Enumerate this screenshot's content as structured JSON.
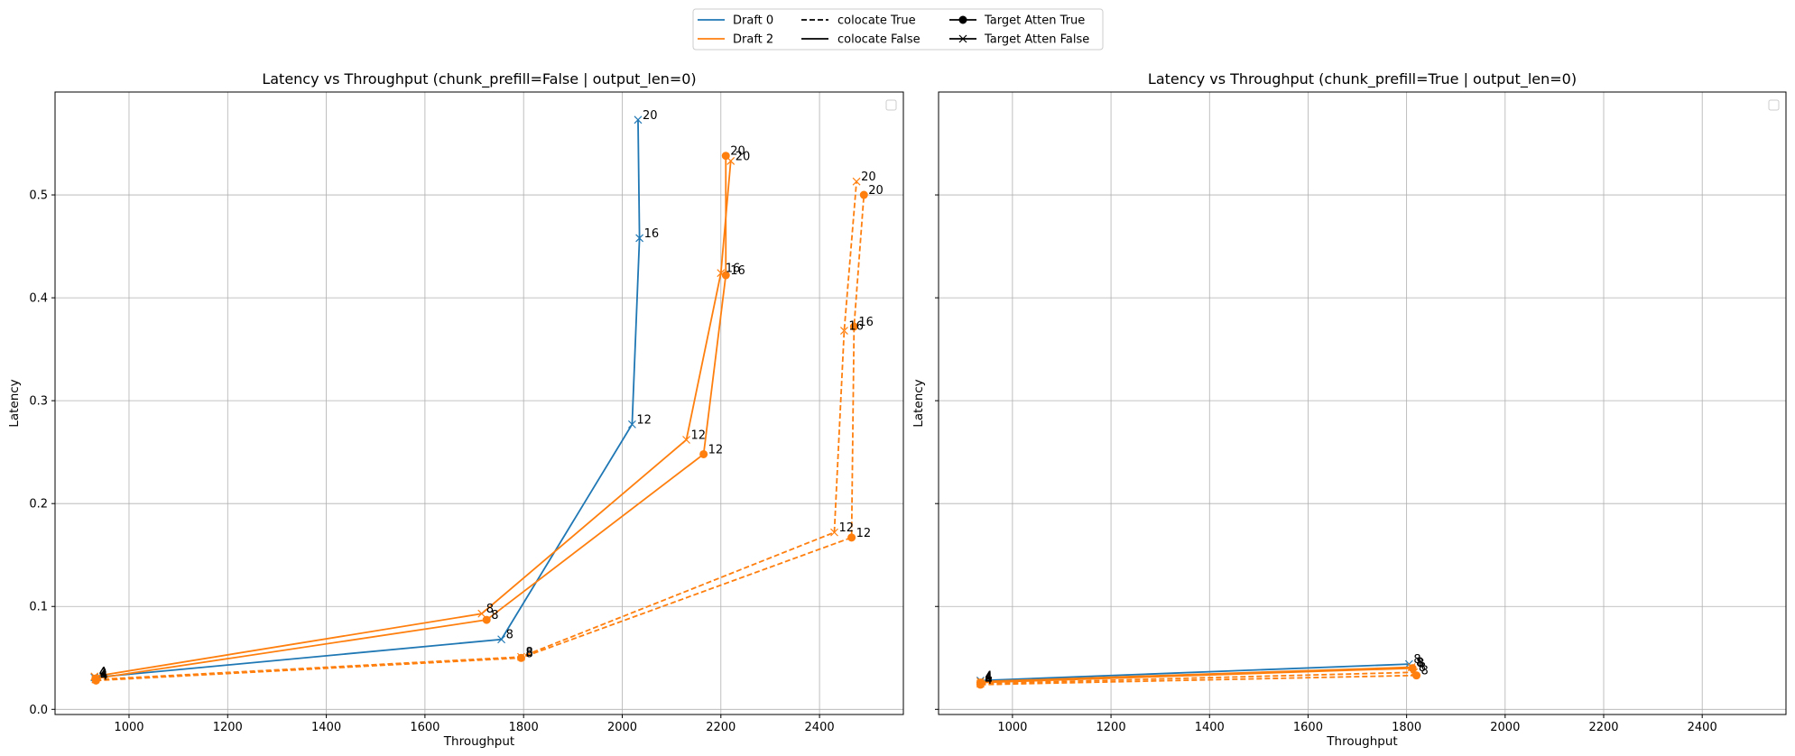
{
  "legend": {
    "entries": [
      {
        "label": "Draft 0",
        "kind": "color",
        "color": "#1f77b4"
      },
      {
        "label": "Draft 2",
        "kind": "color",
        "color": "#ff7f0e"
      },
      {
        "label": "colocate True",
        "kind": "dash"
      },
      {
        "label": "colocate False",
        "kind": "solid"
      },
      {
        "label": "Target Atten True",
        "kind": "marker-o"
      },
      {
        "label": "Target Atten False",
        "kind": "marker-x"
      }
    ]
  },
  "chart_data": [
    {
      "type": "line",
      "title": "Latency vs Throughput (chunk_prefill=False | output_len=0)",
      "xlabel": "Throughput",
      "ylabel": "Latency",
      "xlim": [
        850,
        2570
      ],
      "ylim": [
        -0.005,
        0.6
      ],
      "xticks": [
        1000,
        1200,
        1400,
        1600,
        1800,
        2000,
        2200,
        2400
      ],
      "yticks": [
        0.0,
        0.1,
        0.2,
        0.3,
        0.4,
        0.5
      ],
      "grid": true,
      "series": [
        {
          "draft": "Draft 0",
          "color": "#1f77b4",
          "dash": false,
          "marker": "x",
          "points": [
            {
              "x": 930,
              "y": 0.031,
              "label": "4"
            },
            {
              "x": 1755,
              "y": 0.068,
              "label": "8"
            },
            {
              "x": 2020,
              "y": 0.277,
              "label": "12"
            },
            {
              "x": 2035,
              "y": 0.458,
              "label": "16"
            },
            {
              "x": 2032,
              "y": 0.573,
              "label": "20"
            }
          ]
        },
        {
          "draft": "Draft 2",
          "color": "#ff7f0e",
          "dash": false,
          "marker": "x",
          "points": [
            {
              "x": 930,
              "y": 0.032,
              "label": "4"
            },
            {
              "x": 1715,
              "y": 0.093,
              "label": "8"
            },
            {
              "x": 2130,
              "y": 0.262,
              "label": "12"
            },
            {
              "x": 2200,
              "y": 0.424,
              "label": "16"
            },
            {
              "x": 2220,
              "y": 0.533,
              "label": "20"
            }
          ]
        },
        {
          "draft": "Draft 2",
          "color": "#ff7f0e",
          "dash": false,
          "marker": "o",
          "points": [
            {
              "x": 932,
              "y": 0.03,
              "label": "4"
            },
            {
              "x": 1725,
              "y": 0.087,
              "label": "8"
            },
            {
              "x": 2165,
              "y": 0.248,
              "label": "12"
            },
            {
              "x": 2210,
              "y": 0.422,
              "label": "16"
            },
            {
              "x": 2210,
              "y": 0.538,
              "label": "20"
            }
          ]
        },
        {
          "draft": "Draft 2",
          "color": "#ff7f0e",
          "dash": true,
          "marker": "x",
          "points": [
            {
              "x": 932,
              "y": 0.029,
              "label": "4"
            },
            {
              "x": 1795,
              "y": 0.051,
              "label": "8"
            },
            {
              "x": 2430,
              "y": 0.172,
              "label": "12"
            },
            {
              "x": 2450,
              "y": 0.368,
              "label": "16"
            },
            {
              "x": 2475,
              "y": 0.513,
              "label": "20"
            }
          ]
        },
        {
          "draft": "Draft 2",
          "color": "#ff7f0e",
          "dash": true,
          "marker": "o",
          "points": [
            {
              "x": 933,
              "y": 0.028,
              "label": "4"
            },
            {
              "x": 1795,
              "y": 0.05,
              "label": "8"
            },
            {
              "x": 2465,
              "y": 0.167,
              "label": "12"
            },
            {
              "x": 2470,
              "y": 0.372,
              "label": "16"
            },
            {
              "x": 2490,
              "y": 0.5,
              "label": "20"
            }
          ]
        }
      ]
    },
    {
      "type": "line",
      "title": "Latency vs Throughput (chunk_prefill=True | output_len=0)",
      "xlabel": "Throughput",
      "ylabel": "Latency",
      "xlim": [
        850,
        2570
      ],
      "ylim": [
        -0.005,
        0.6
      ],
      "xticks": [
        1000,
        1200,
        1400,
        1600,
        1800,
        2000,
        2200,
        2400
      ],
      "yticks": [
        0.0,
        0.1,
        0.2,
        0.3,
        0.4,
        0.5
      ],
      "grid": true,
      "series": [
        {
          "draft": "Draft 0",
          "color": "#1f77b4",
          "dash": false,
          "marker": "x",
          "points": [
            {
              "x": 935,
              "y": 0.028,
              "label": "4"
            },
            {
              "x": 1805,
              "y": 0.044,
              "label": "8"
            }
          ]
        },
        {
          "draft": "Draft 2",
          "color": "#ff7f0e",
          "dash": false,
          "marker": "x",
          "points": [
            {
              "x": 935,
              "y": 0.027,
              "label": "4"
            },
            {
              "x": 1810,
              "y": 0.041,
              "label": "8"
            }
          ]
        },
        {
          "draft": "Draft 2",
          "color": "#ff7f0e",
          "dash": false,
          "marker": "o",
          "points": [
            {
              "x": 935,
              "y": 0.026,
              "label": "4"
            },
            {
              "x": 1812,
              "y": 0.04,
              "label": "8"
            }
          ]
        },
        {
          "draft": "Draft 2",
          "color": "#ff7f0e",
          "dash": true,
          "marker": "x",
          "points": [
            {
              "x": 935,
              "y": 0.025,
              "label": "4"
            },
            {
              "x": 1815,
              "y": 0.036,
              "label": "8"
            }
          ]
        },
        {
          "draft": "Draft 2",
          "color": "#ff7f0e",
          "dash": true,
          "marker": "o",
          "points": [
            {
              "x": 935,
              "y": 0.024,
              "label": "4"
            },
            {
              "x": 1820,
              "y": 0.033,
              "label": "8"
            }
          ]
        }
      ]
    }
  ]
}
